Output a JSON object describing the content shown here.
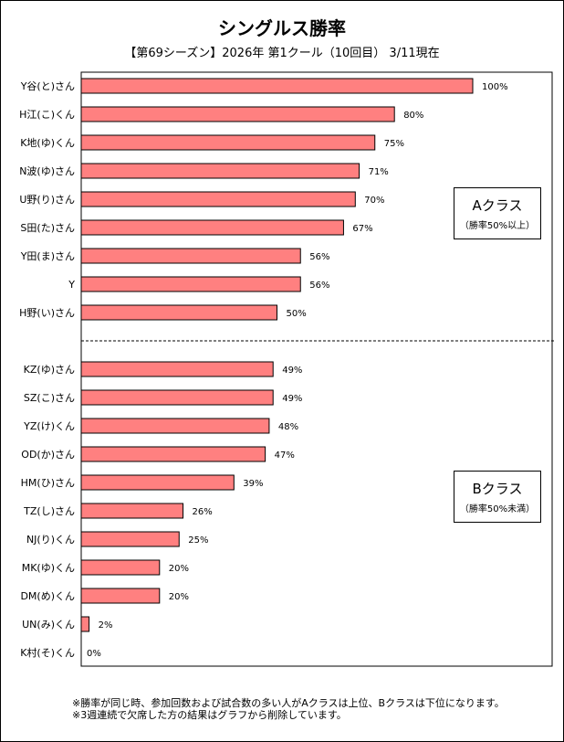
{
  "chart_data": {
    "type": "bar",
    "orientation": "horizontal",
    "title": "シングルス勝率",
    "subtitle": "【第69シーズン】2026年 第1クール（10回目） 3/11現在",
    "categories": [
      "Y谷(と)さん",
      "H江(こ)くん",
      "K地(ゆ)くん",
      "N波(ゆ)さん",
      "U野(り)さん",
      "S田(た)さん",
      "Y田(ま)さん",
      "Y",
      "H野(い)さん",
      "KZ(ゆ)さん",
      "SZ(こ)さん",
      "YZ(け)くん",
      "OD(か)さん",
      "HM(ひ)さん",
      "TZ(し)さん",
      "NJ(り)くん",
      "MK(ゆ)くん",
      "DM(め)くん",
      "UN(み)くん",
      "K村(そ)くん"
    ],
    "values": [
      100,
      80,
      75,
      71,
      70,
      67,
      56,
      56,
      50,
      49,
      49,
      48,
      47,
      39,
      26,
      25,
      20,
      20,
      2,
      0
    ],
    "value_labels": [
      "100%",
      "80%",
      "75%",
      "71%",
      "70%",
      "67%",
      "56%",
      "56%",
      "50%",
      "49%",
      "49%",
      "48%",
      "47%",
      "39%",
      "26%",
      "25%",
      "20%",
      "20%",
      "2%",
      "0%"
    ],
    "xlim": [
      0,
      100
    ],
    "unit": "%",
    "grid": false,
    "divider_after_index": 8,
    "bar_color": "#FF8080"
  },
  "classes": {
    "a": {
      "name": "Aクラス",
      "desc": "（勝率50%以上）"
    },
    "b": {
      "name": "Bクラス",
      "desc": "（勝率50%未満）"
    }
  },
  "notes": [
    "※勝率が同じ時、参加回数および試合数の多い人がAクラスは上位、Bクラスは下位になります。",
    "※3週連続で欠席した方の結果はグラフから削除しています。"
  ]
}
